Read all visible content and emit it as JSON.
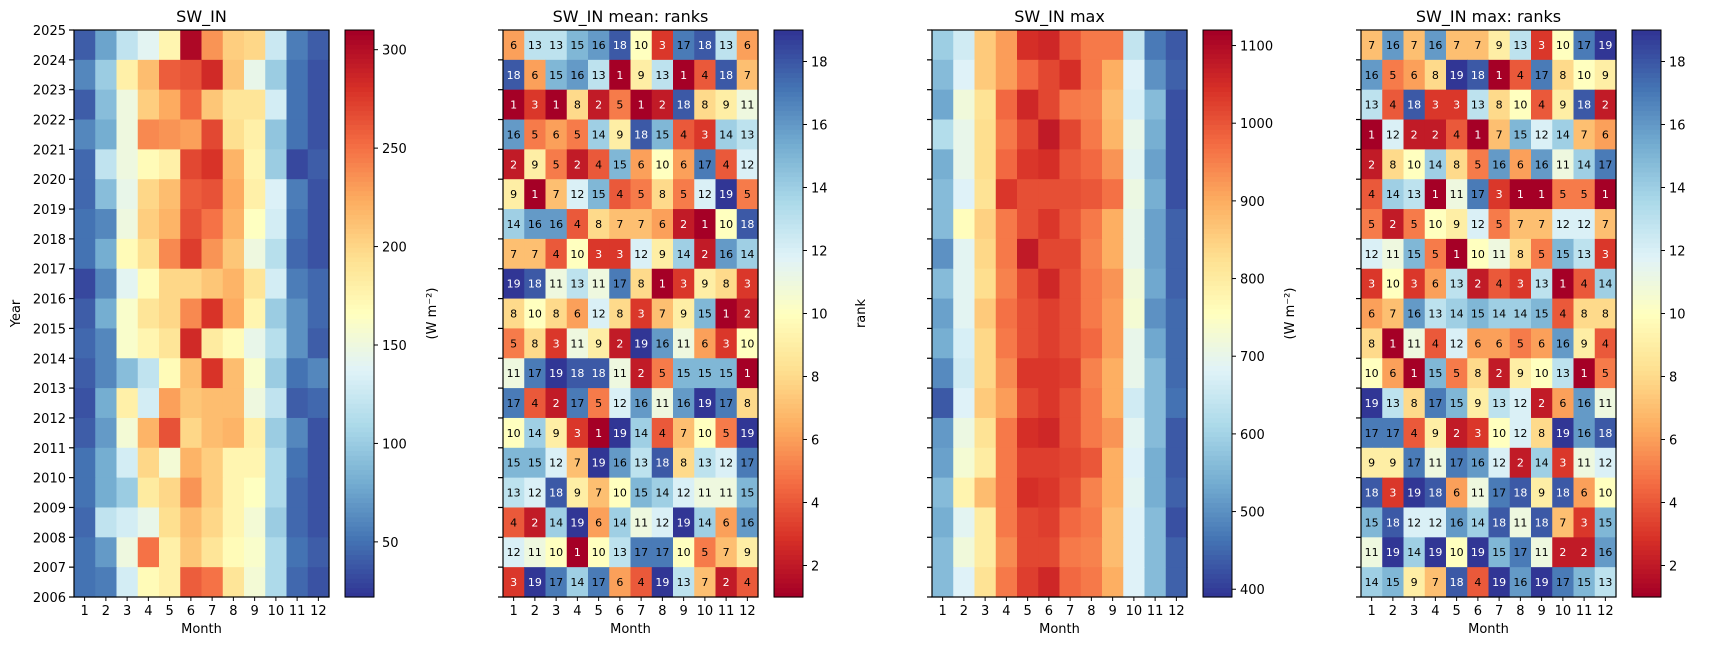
{
  "figure": {
    "x_label": "Month",
    "y_label": "Year",
    "cbar_units_label": "(W m⁻²)",
    "cbar_rank_label": "rank"
  },
  "chart_data": [
    {
      "type": "heatmap",
      "title": "SW_IN",
      "xlabel": "Month",
      "ylabel": "Year",
      "x_ticks": [
        "1",
        "2",
        "3",
        "4",
        "5",
        "6",
        "7",
        "8",
        "9",
        "10",
        "11",
        "12"
      ],
      "y_ticks": [
        "2006",
        "2007",
        "2008",
        "2009",
        "2010",
        "2011",
        "2012",
        "2013",
        "2014",
        "2015",
        "2016",
        "2017",
        "2018",
        "2019",
        "2020",
        "2021",
        "2022",
        "2023",
        "2024",
        "2025"
      ],
      "years_top_to_bottom": [
        "2024",
        "2023",
        "2022",
        "2021",
        "2020",
        "2019",
        "2018",
        "2017",
        "2016",
        "2015",
        "2014",
        "2013",
        "2012",
        "2011",
        "2010",
        "2009",
        "2008",
        "2007",
        "2006"
      ],
      "colorbar": {
        "label": "(W m⁻²)",
        "range": [
          22,
          310
        ],
        "ticks": [
          50,
          100,
          150,
          200,
          250,
          300
        ]
      },
      "values": [
        [
          40,
          75,
          120,
          140,
          175,
          305,
          235,
          205,
          200,
          125,
          55,
          40
        ],
        [
          60,
          100,
          180,
          215,
          260,
          265,
          285,
          210,
          145,
          100,
          50,
          35
        ],
        [
          40,
          90,
          150,
          205,
          225,
          255,
          210,
          190,
          190,
          130,
          50,
          35
        ],
        [
          60,
          80,
          150,
          240,
          235,
          230,
          270,
          195,
          180,
          95,
          50,
          35
        ],
        [
          45,
          120,
          150,
          170,
          180,
          270,
          280,
          220,
          175,
          100,
          30,
          40
        ],
        [
          45,
          90,
          145,
          200,
          215,
          260,
          265,
          225,
          180,
          135,
          55,
          35
        ],
        [
          50,
          60,
          150,
          205,
          220,
          265,
          250,
          220,
          165,
          130,
          50,
          35
        ],
        [
          50,
          80,
          170,
          195,
          240,
          275,
          235,
          210,
          150,
          115,
          45,
          35
        ],
        [
          30,
          60,
          140,
          170,
          200,
          200,
          210,
          220,
          190,
          130,
          55,
          45
        ],
        [
          40,
          80,
          160,
          190,
          200,
          240,
          280,
          225,
          175,
          100,
          65,
          45
        ],
        [
          45,
          60,
          160,
          175,
          190,
          285,
          185,
          170,
          145,
          115,
          65,
          40
        ],
        [
          40,
          60,
          90,
          120,
          170,
          215,
          280,
          215,
          160,
          100,
          50,
          60
        ],
        [
          35,
          80,
          180,
          130,
          230,
          210,
          215,
          215,
          150,
          120,
          40,
          45
        ],
        [
          40,
          70,
          155,
          220,
          265,
          200,
          215,
          220,
          180,
          100,
          60,
          35
        ],
        [
          50,
          80,
          130,
          200,
          155,
          220,
          205,
          175,
          175,
          110,
          50,
          35
        ],
        [
          50,
          80,
          100,
          185,
          200,
          235,
          205,
          175,
          165,
          110,
          45,
          35
        ],
        [
          45,
          120,
          130,
          145,
          195,
          215,
          200,
          175,
          155,
          100,
          45,
          35
        ],
        [
          50,
          70,
          150,
          250,
          180,
          210,
          190,
          170,
          160,
          110,
          50,
          40
        ],
        [
          50,
          55,
          130,
          170,
          180,
          260,
          250,
          190,
          155,
          110,
          45,
          35
        ]
      ]
    },
    {
      "type": "heatmap",
      "title": "SW_IN mean: ranks",
      "xlabel": "Month",
      "x_ticks": [
        "1",
        "2",
        "3",
        "4",
        "5",
        "6",
        "7",
        "8",
        "9",
        "10",
        "11",
        "12"
      ],
      "years_top_to_bottom": [
        "2024",
        "2023",
        "2022",
        "2021",
        "2020",
        "2019",
        "2018",
        "2017",
        "2016",
        "2015",
        "2014",
        "2013",
        "2012",
        "2011",
        "2010",
        "2009",
        "2008",
        "2007",
        "2006"
      ],
      "colorbar": {
        "label": "rank",
        "range": [
          1,
          19
        ],
        "ticks": [
          2,
          4,
          6,
          8,
          10,
          12,
          14,
          16,
          18
        ]
      },
      "values": [
        [
          6,
          13,
          13,
          15,
          16,
          18,
          10,
          3,
          17,
          18,
          13,
          6
        ],
        [
          18,
          6,
          15,
          16,
          13,
          1,
          9,
          13,
          1,
          4,
          18,
          7
        ],
        [
          1,
          3,
          1,
          8,
          2,
          5,
          1,
          2,
          18,
          8,
          9,
          11
        ],
        [
          16,
          5,
          6,
          5,
          14,
          9,
          18,
          15,
          4,
          3,
          14,
          13
        ],
        [
          2,
          9,
          5,
          2,
          4,
          15,
          6,
          10,
          6,
          17,
          4,
          12
        ],
        [
          9,
          1,
          7,
          12,
          15,
          4,
          5,
          8,
          5,
          12,
          19,
          5
        ],
        [
          14,
          16,
          16,
          4,
          8,
          7,
          7,
          6,
          2,
          1,
          10,
          18
        ],
        [
          7,
          7,
          4,
          10,
          3,
          3,
          12,
          9,
          14,
          2,
          16,
          14
        ],
        [
          19,
          18,
          11,
          13,
          11,
          17,
          8,
          1,
          3,
          9,
          8,
          3
        ],
        [
          8,
          10,
          8,
          6,
          12,
          8,
          3,
          7,
          9,
          15,
          1,
          2
        ],
        [
          5,
          8,
          3,
          11,
          9,
          2,
          19,
          16,
          11,
          6,
          3,
          10
        ],
        [
          11,
          17,
          19,
          18,
          18,
          11,
          2,
          5,
          15,
          15,
          15,
          1
        ],
        [
          17,
          4,
          2,
          17,
          5,
          12,
          16,
          11,
          16,
          19,
          17,
          8
        ],
        [
          10,
          14,
          9,
          3,
          1,
          19,
          14,
          4,
          7,
          10,
          5,
          19
        ],
        [
          15,
          15,
          12,
          7,
          19,
          16,
          13,
          18,
          8,
          13,
          12,
          17
        ],
        [
          13,
          12,
          18,
          9,
          7,
          10,
          15,
          14,
          12,
          11,
          11,
          15
        ],
        [
          4,
          2,
          14,
          19,
          6,
          14,
          11,
          12,
          19,
          14,
          6,
          16
        ],
        [
          12,
          11,
          10,
          1,
          10,
          13,
          17,
          17,
          10,
          5,
          7,
          9
        ],
        [
          3,
          19,
          17,
          14,
          17,
          6,
          4,
          19,
          13,
          7,
          2,
          4
        ]
      ]
    },
    {
      "type": "heatmap",
      "title": "SW_IN max",
      "xlabel": "Month",
      "x_ticks": [
        "1",
        "2",
        "3",
        "4",
        "5",
        "6",
        "7",
        "8",
        "9",
        "10",
        "11",
        "12"
      ],
      "years_top_to_bottom": [
        "2024",
        "2023",
        "2022",
        "2021",
        "2020",
        "2019",
        "2018",
        "2017",
        "2016",
        "2015",
        "2014",
        "2013",
        "2012",
        "2011",
        "2010",
        "2009",
        "2008",
        "2007",
        "2006"
      ],
      "colorbar": {
        "label": "(W m⁻²)",
        "range": [
          390,
          1120
        ],
        "ticks": [
          400,
          500,
          600,
          700,
          800,
          900,
          1000,
          1100
        ]
      },
      "values": [
        [
          590,
          660,
          860,
          920,
          1050,
          1060,
          1000,
          960,
          960,
          640,
          470,
          430
        ],
        [
          560,
          680,
          860,
          920,
          980,
          1020,
          1050,
          960,
          900,
          680,
          500,
          440
        ],
        [
          530,
          720,
          820,
          980,
          1060,
          1020,
          960,
          950,
          880,
          670,
          560,
          420
        ],
        [
          620,
          700,
          830,
          960,
          1020,
          1080,
          1020,
          960,
          890,
          700,
          540,
          420
        ],
        [
          540,
          700,
          830,
          980,
          1040,
          1050,
          1000,
          980,
          930,
          690,
          520,
          420
        ],
        [
          560,
          680,
          820,
          1040,
          1010,
          1010,
          1010,
          1000,
          970,
          710,
          540,
          420
        ],
        [
          560,
          760,
          850,
          960,
          1010,
          1040,
          1000,
          960,
          900,
          700,
          520,
          440
        ],
        [
          500,
          690,
          840,
          960,
          1080,
          1020,
          1020,
          950,
          900,
          700,
          520,
          440
        ],
        [
          560,
          690,
          830,
          950,
          1020,
          1060,
          1010,
          960,
          930,
          720,
          530,
          440
        ],
        [
          520,
          690,
          860,
          970,
          1010,
          1030,
          1010,
          960,
          920,
          730,
          500,
          450
        ],
        [
          540,
          670,
          840,
          960,
          1010,
          1030,
          1010,
          980,
          920,
          700,
          530,
          450
        ],
        [
          490,
          660,
          840,
          940,
          1040,
          1040,
          1030,
          950,
          900,
          700,
          560,
          450
        ],
        [
          430,
          680,
          860,
          920,
          1020,
          1040,
          1010,
          960,
          900,
          660,
          560,
          460
        ],
        [
          510,
          710,
          820,
          960,
          1050,
          1060,
          1010,
          960,
          930,
          690,
          560,
          430
        ],
        [
          520,
          730,
          800,
          960,
          1030,
          1030,
          1020,
          1000,
          900,
          680,
          540,
          430
        ],
        [
          560,
          780,
          880,
          960,
          1050,
          1040,
          1010,
          950,
          900,
          690,
          540,
          440
        ],
        [
          540,
          690,
          800,
          960,
          1020,
          1030,
          980,
          960,
          880,
          680,
          560,
          420
        ],
        [
          560,
          720,
          800,
          940,
          1020,
          1020,
          960,
          950,
          880,
          680,
          560,
          440
        ],
        [
          560,
          680,
          820,
          960,
          1030,
          1060,
          980,
          960,
          900,
          680,
          560,
          440
        ]
      ]
    },
    {
      "type": "heatmap",
      "title": "SW_IN max: ranks",
      "xlabel": "Month",
      "x_ticks": [
        "1",
        "2",
        "3",
        "4",
        "5",
        "6",
        "7",
        "8",
        "9",
        "10",
        "11",
        "12"
      ],
      "years_top_to_bottom": [
        "2024",
        "2023",
        "2022",
        "2021",
        "2020",
        "2019",
        "2018",
        "2017",
        "2016",
        "2015",
        "2014",
        "2013",
        "2012",
        "2011",
        "2010",
        "2009",
        "2008",
        "2007",
        "2006"
      ],
      "colorbar": {
        "label": "rank",
        "range": [
          1,
          19
        ],
        "ticks": [
          2,
          4,
          6,
          8,
          10,
          12,
          14,
          16,
          18
        ]
      },
      "values": [
        [
          7,
          16,
          7,
          16,
          7,
          7,
          9,
          13,
          3,
          10,
          17,
          19
        ],
        [
          16,
          5,
          6,
          8,
          19,
          18,
          1,
          4,
          17,
          8,
          10,
          9
        ],
        [
          13,
          4,
          18,
          3,
          3,
          13,
          8,
          10,
          4,
          9,
          18,
          2
        ],
        [
          1,
          12,
          2,
          2,
          4,
          1,
          7,
          15,
          12,
          14,
          7,
          6
        ],
        [
          2,
          8,
          10,
          14,
          8,
          5,
          16,
          6,
          16,
          11,
          14,
          17
        ],
        [
          4,
          14,
          13,
          1,
          11,
          17,
          3,
          1,
          1,
          5,
          5,
          1
        ],
        [
          5,
          2,
          5,
          10,
          9,
          12,
          5,
          7,
          7,
          12,
          12,
          7
        ],
        [
          12,
          11,
          15,
          5,
          1,
          10,
          11,
          8,
          5,
          15,
          13,
          3
        ],
        [
          3,
          10,
          3,
          6,
          13,
          2,
          4,
          3,
          13,
          1,
          4,
          14
        ],
        [
          6,
          7,
          16,
          13,
          14,
          15,
          14,
          14,
          15,
          4,
          8,
          8
        ],
        [
          8,
          1,
          11,
          4,
          12,
          6,
          6,
          5,
          6,
          16,
          9,
          4
        ],
        [
          10,
          6,
          1,
          15,
          5,
          8,
          2,
          9,
          10,
          13,
          1,
          5
        ],
        [
          19,
          13,
          8,
          17,
          15,
          9,
          13,
          12,
          2,
          6,
          16,
          11
        ],
        [
          17,
          17,
          4,
          9,
          2,
          3,
          10,
          12,
          8,
          19,
          16,
          18
        ],
        [
          9,
          9,
          17,
          11,
          17,
          16,
          12,
          2,
          14,
          3,
          11,
          12
        ],
        [
          18,
          3,
          19,
          18,
          6,
          11,
          17,
          18,
          9,
          18,
          6,
          10
        ],
        [
          15,
          18,
          12,
          12,
          16,
          14,
          18,
          11,
          18,
          7,
          3,
          15
        ],
        [
          11,
          19,
          14,
          19,
          10,
          19,
          15,
          17,
          11,
          2,
          2,
          16
        ],
        [
          14,
          15,
          9,
          7,
          18,
          4,
          19,
          16,
          19,
          17,
          15,
          13
        ]
      ]
    }
  ]
}
